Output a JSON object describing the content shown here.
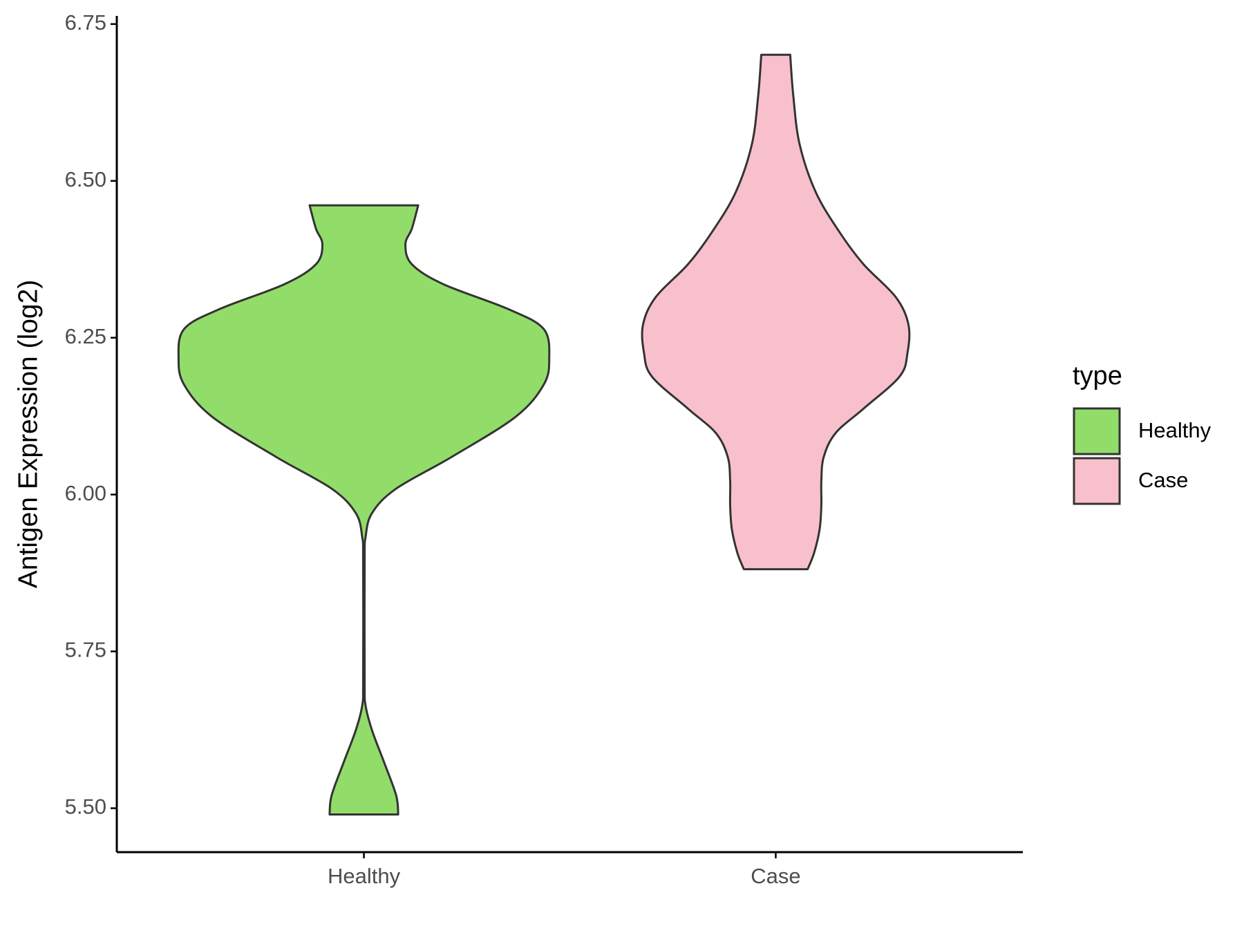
{
  "chart_data": {
    "type": "violin",
    "ylabel": "Antigen Expression (log2)",
    "legend_title": "type",
    "categories": [
      "Healthy",
      "Case"
    ],
    "ylim": [
      5.43,
      6.763
    ],
    "yticks": [
      {
        "value": 5.5,
        "label": "5.50"
      },
      5.75,
      {
        "value": 6,
        "label": "6.00"
      },
      6.25,
      {
        "value": 6.5,
        "label": "6.50"
      },
      6.75
    ],
    "series": [
      {
        "name": "Healthy",
        "color": "#92dd6a",
        "y": [
          5.49,
          5.51,
          5.53,
          5.574,
          5.625,
          5.664,
          5.702,
          5.894,
          5.932,
          5.97,
          6.009,
          6.06,
          6.124,
          6.175,
          6.216,
          6.264,
          6.296,
          6.335,
          6.367,
          6.399,
          6.424,
          6.461
        ],
        "width": [
          0.185,
          0.181,
          0.164,
          0.108,
          0.043,
          0.009,
          0.004,
          0.004,
          0.009,
          0.043,
          0.172,
          0.474,
          0.819,
          0.97,
          1,
          0.97,
          0.776,
          0.431,
          0.259,
          0.224,
          0.259,
          0.293
        ]
      },
      {
        "name": "Case",
        "color": "#f8c0cc",
        "y": [
          5.881,
          5.907,
          5.945,
          5.983,
          6.022,
          6.06,
          6.098,
          6.137,
          6.188,
          6.226,
          6.271,
          6.315,
          6.367,
          6.418,
          6.482,
          6.558,
          6.635,
          6.701
        ],
        "width": [
          0.172,
          0.207,
          0.237,
          0.246,
          0.246,
          0.259,
          0.323,
          0.474,
          0.668,
          0.711,
          0.716,
          0.647,
          0.474,
          0.345,
          0.216,
          0.129,
          0.095,
          0.078
        ]
      }
    ]
  }
}
